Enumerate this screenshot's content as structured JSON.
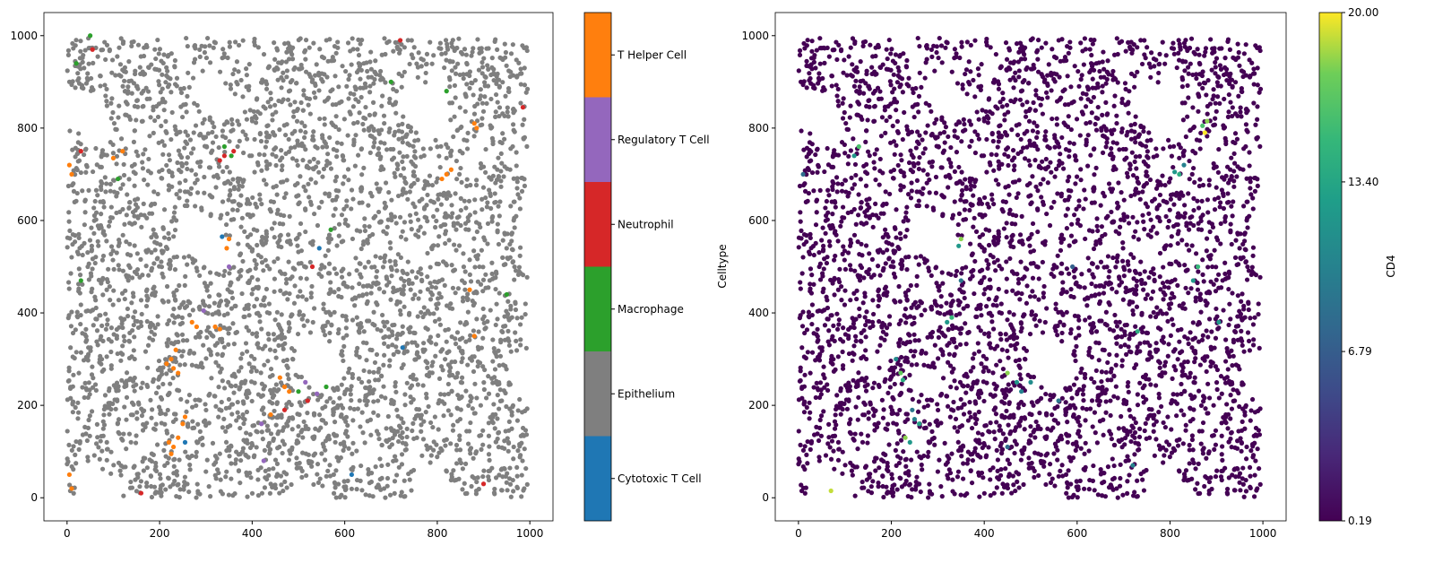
{
  "chart_data": [
    {
      "type": "scatter",
      "xlim": [
        -50,
        1050
      ],
      "ylim": [
        -50,
        1050
      ],
      "xticks": [
        "0",
        "200",
        "400",
        "600",
        "800",
        "1000"
      ],
      "yticks": [
        "0",
        "200",
        "400",
        "600",
        "800",
        "1000"
      ],
      "grid": false,
      "colorbar": {
        "label": "Celltype",
        "categories": [
          {
            "name": "Cytotoxic T Cell",
            "color": "#1f77b4"
          },
          {
            "name": "Epithelium",
            "color": "#7f7f7f"
          },
          {
            "name": "Macrophage",
            "color": "#2ca02c"
          },
          {
            "name": "Neutrophil",
            "color": "#d62728"
          },
          {
            "name": "Regulatory T Cell",
            "color": "#9467bd"
          },
          {
            "name": "T Helper Cell",
            "color": "#ff7f0e"
          }
        ]
      },
      "points_sample": [
        [
          230,
          280,
          "T Helper Cell"
        ],
        [
          225,
          300,
          "T Helper Cell"
        ],
        [
          240,
          270,
          "T Helper Cell"
        ],
        [
          215,
          290,
          "T Helper Cell"
        ],
        [
          235,
          320,
          "T Helper Cell"
        ],
        [
          220,
          120,
          "T Helper Cell"
        ],
        [
          230,
          110,
          "T Helper Cell"
        ],
        [
          240,
          130,
          "T Helper Cell"
        ],
        [
          225,
          95,
          "T Helper Cell"
        ],
        [
          250,
          160,
          "T Helper Cell"
        ],
        [
          255,
          175,
          "T Helper Cell"
        ],
        [
          270,
          380,
          "T Helper Cell"
        ],
        [
          280,
          370,
          "T Helper Cell"
        ],
        [
          320,
          370,
          "T Helper Cell"
        ],
        [
          330,
          365,
          "T Helper Cell"
        ],
        [
          350,
          560,
          "T Helper Cell"
        ],
        [
          345,
          540,
          "T Helper Cell"
        ],
        [
          820,
          700,
          "T Helper Cell"
        ],
        [
          810,
          690,
          "T Helper Cell"
        ],
        [
          830,
          710,
          "T Helper Cell"
        ],
        [
          880,
          810,
          "T Helper Cell"
        ],
        [
          885,
          800,
          "T Helper Cell"
        ],
        [
          460,
          260,
          "T Helper Cell"
        ],
        [
          470,
          240,
          "T Helper Cell"
        ],
        [
          480,
          230,
          "T Helper Cell"
        ],
        [
          440,
          180,
          "T Helper Cell"
        ],
        [
          100,
          735,
          "T Helper Cell"
        ],
        [
          120,
          750,
          "T Helper Cell"
        ],
        [
          5,
          720,
          "T Helper Cell"
        ],
        [
          10,
          700,
          "T Helper Cell"
        ],
        [
          10,
          20,
          "T Helper Cell"
        ],
        [
          5,
          50,
          "T Helper Cell"
        ],
        [
          880,
          350,
          "T Helper Cell"
        ],
        [
          870,
          450,
          "T Helper Cell"
        ],
        [
          340,
          760,
          "Macrophage"
        ],
        [
          355,
          740,
          "Macrophage"
        ],
        [
          20,
          940,
          "Macrophage"
        ],
        [
          50,
          1000,
          "Macrophage"
        ],
        [
          110,
          690,
          "Macrophage"
        ],
        [
          500,
          230,
          "Macrophage"
        ],
        [
          560,
          240,
          "Macrophage"
        ],
        [
          570,
          580,
          "Macrophage"
        ],
        [
          700,
          900,
          "Macrophage"
        ],
        [
          820,
          880,
          "Macrophage"
        ],
        [
          30,
          470,
          "Macrophage"
        ],
        [
          950,
          440,
          "Macrophage"
        ],
        [
          340,
          740,
          "Neutrophil"
        ],
        [
          360,
          750,
          "Neutrophil"
        ],
        [
          330,
          730,
          "Neutrophil"
        ],
        [
          55,
          970,
          "Neutrophil"
        ],
        [
          30,
          750,
          "Neutrophil"
        ],
        [
          530,
          500,
          "Neutrophil"
        ],
        [
          520,
          210,
          "Neutrophil"
        ],
        [
          470,
          190,
          "Neutrophil"
        ],
        [
          720,
          990,
          "Neutrophil"
        ],
        [
          985,
          845,
          "Neutrophil"
        ],
        [
          900,
          30,
          "Neutrophil"
        ],
        [
          160,
          10,
          "Neutrophil"
        ],
        [
          295,
          405,
          "Regulatory T Cell"
        ],
        [
          350,
          500,
          "Regulatory T Cell"
        ],
        [
          420,
          160,
          "Regulatory T Cell"
        ],
        [
          425,
          80,
          "Regulatory T Cell"
        ],
        [
          515,
          250,
          "Regulatory T Cell"
        ],
        [
          540,
          225,
          "Regulatory T Cell"
        ],
        [
          335,
          565,
          "Cytotoxic T Cell"
        ],
        [
          545,
          540,
          "Cytotoxic T Cell"
        ],
        [
          255,
          120,
          "Cytotoxic T Cell"
        ],
        [
          725,
          325,
          "Cytotoxic T Cell"
        ],
        [
          615,
          50,
          "Cytotoxic T Cell"
        ]
      ]
    },
    {
      "type": "scatter",
      "xlim": [
        -50,
        1050
      ],
      "ylim": [
        -50,
        1050
      ],
      "xticks": [
        "0",
        "200",
        "400",
        "600",
        "800",
        "1000"
      ],
      "yticks": [
        "0",
        "200",
        "400",
        "600",
        "800",
        "1000"
      ],
      "grid": false,
      "colorbar": {
        "label": "CD4",
        "colormap": "viridis",
        "range": [
          0.19,
          20.0
        ],
        "ticks": [
          "0.19",
          "6.79",
          "13.40",
          "20.00"
        ],
        "tick_values": [
          0.19,
          6.79,
          13.4,
          20.0
        ]
      },
      "points_sample": [
        [
          880,
          815,
          18
        ],
        [
          870,
          805,
          16
        ],
        [
          820,
          700,
          14
        ],
        [
          810,
          705,
          12
        ],
        [
          830,
          720,
          10
        ],
        [
          350,
          560,
          18
        ],
        [
          345,
          545,
          12
        ],
        [
          330,
          390,
          15
        ],
        [
          320,
          380,
          12
        ],
        [
          220,
          270,
          17
        ],
        [
          225,
          255,
          14
        ],
        [
          230,
          130,
          18
        ],
        [
          240,
          120,
          12
        ],
        [
          250,
          170,
          10
        ],
        [
          245,
          190,
          9
        ],
        [
          260,
          160,
          13
        ],
        [
          450,
          270,
          18
        ],
        [
          470,
          250,
          12
        ],
        [
          480,
          230,
          10
        ],
        [
          730,
          360,
          14
        ],
        [
          860,
          500,
          15
        ],
        [
          850,
          470,
          12
        ],
        [
          130,
          760,
          16
        ],
        [
          120,
          740,
          12
        ],
        [
          70,
          15,
          19
        ],
        [
          500,
          250,
          11
        ],
        [
          560,
          210,
          9
        ],
        [
          10,
          700,
          8
        ],
        [
          350,
          470,
          9
        ],
        [
          210,
          300,
          11
        ],
        [
          875,
          790,
          20
        ],
        [
          905,
          380,
          12
        ],
        [
          590,
          500,
          7
        ],
        [
          450,
          110,
          8
        ],
        [
          720,
          70,
          10
        ]
      ]
    }
  ]
}
